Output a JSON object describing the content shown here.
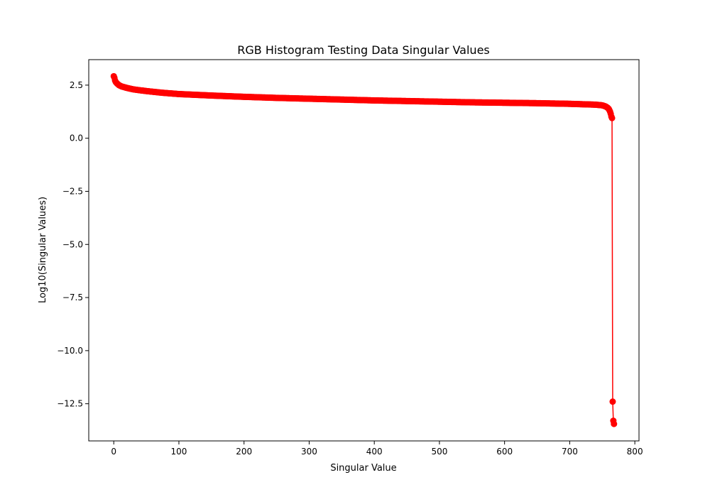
{
  "chart_data": {
    "type": "line",
    "title": "RGB Histogram Testing Data Singular Values",
    "xlabel": "Singular Value",
    "ylabel": "Log10(Singular Values)",
    "xlim": [
      -38.4,
      806.4
    ],
    "ylim": [
      -14.25,
      3.7
    ],
    "xticks": [
      0,
      100,
      200,
      300,
      400,
      500,
      600,
      700,
      800
    ],
    "xtick_labels": [
      "0",
      "100",
      "200",
      "300",
      "400",
      "500",
      "600",
      "700",
      "800"
    ],
    "yticks": [
      2.5,
      0.0,
      -2.5,
      -5.0,
      -7.5,
      -10.0,
      -12.5
    ],
    "ytick_labels": [
      "2.5",
      "0.0",
      "−2.5",
      "−5.0",
      "−7.5",
      "−10.0",
      "−12.5"
    ],
    "grid": false,
    "series": [
      {
        "color": "#ff0000",
        "marker": "circle",
        "count": 768,
        "anchors": [
          [
            0,
            2.92
          ],
          [
            1,
            2.85
          ],
          [
            2,
            2.72
          ],
          [
            3,
            2.65
          ],
          [
            5,
            2.58
          ],
          [
            8,
            2.5
          ],
          [
            12,
            2.44
          ],
          [
            20,
            2.37
          ],
          [
            30,
            2.3
          ],
          [
            50,
            2.22
          ],
          [
            75,
            2.14
          ],
          [
            100,
            2.08
          ],
          [
            150,
            2.01
          ],
          [
            200,
            1.95
          ],
          [
            250,
            1.9
          ],
          [
            300,
            1.86
          ],
          [
            350,
            1.82
          ],
          [
            400,
            1.78
          ],
          [
            450,
            1.75
          ],
          [
            500,
            1.72
          ],
          [
            550,
            1.69
          ],
          [
            600,
            1.67
          ],
          [
            650,
            1.65
          ],
          [
            700,
            1.62
          ],
          [
            740,
            1.58
          ],
          [
            750,
            1.55
          ],
          [
            755,
            1.5
          ],
          [
            758,
            1.44
          ],
          [
            760,
            1.38
          ],
          [
            762,
            1.25
          ],
          [
            763,
            1.15
          ],
          [
            764,
            1.02
          ],
          [
            765,
            0.95
          ],
          [
            766,
            -12.4
          ],
          [
            767,
            -13.3
          ],
          [
            768,
            -13.45
          ]
        ]
      }
    ]
  }
}
